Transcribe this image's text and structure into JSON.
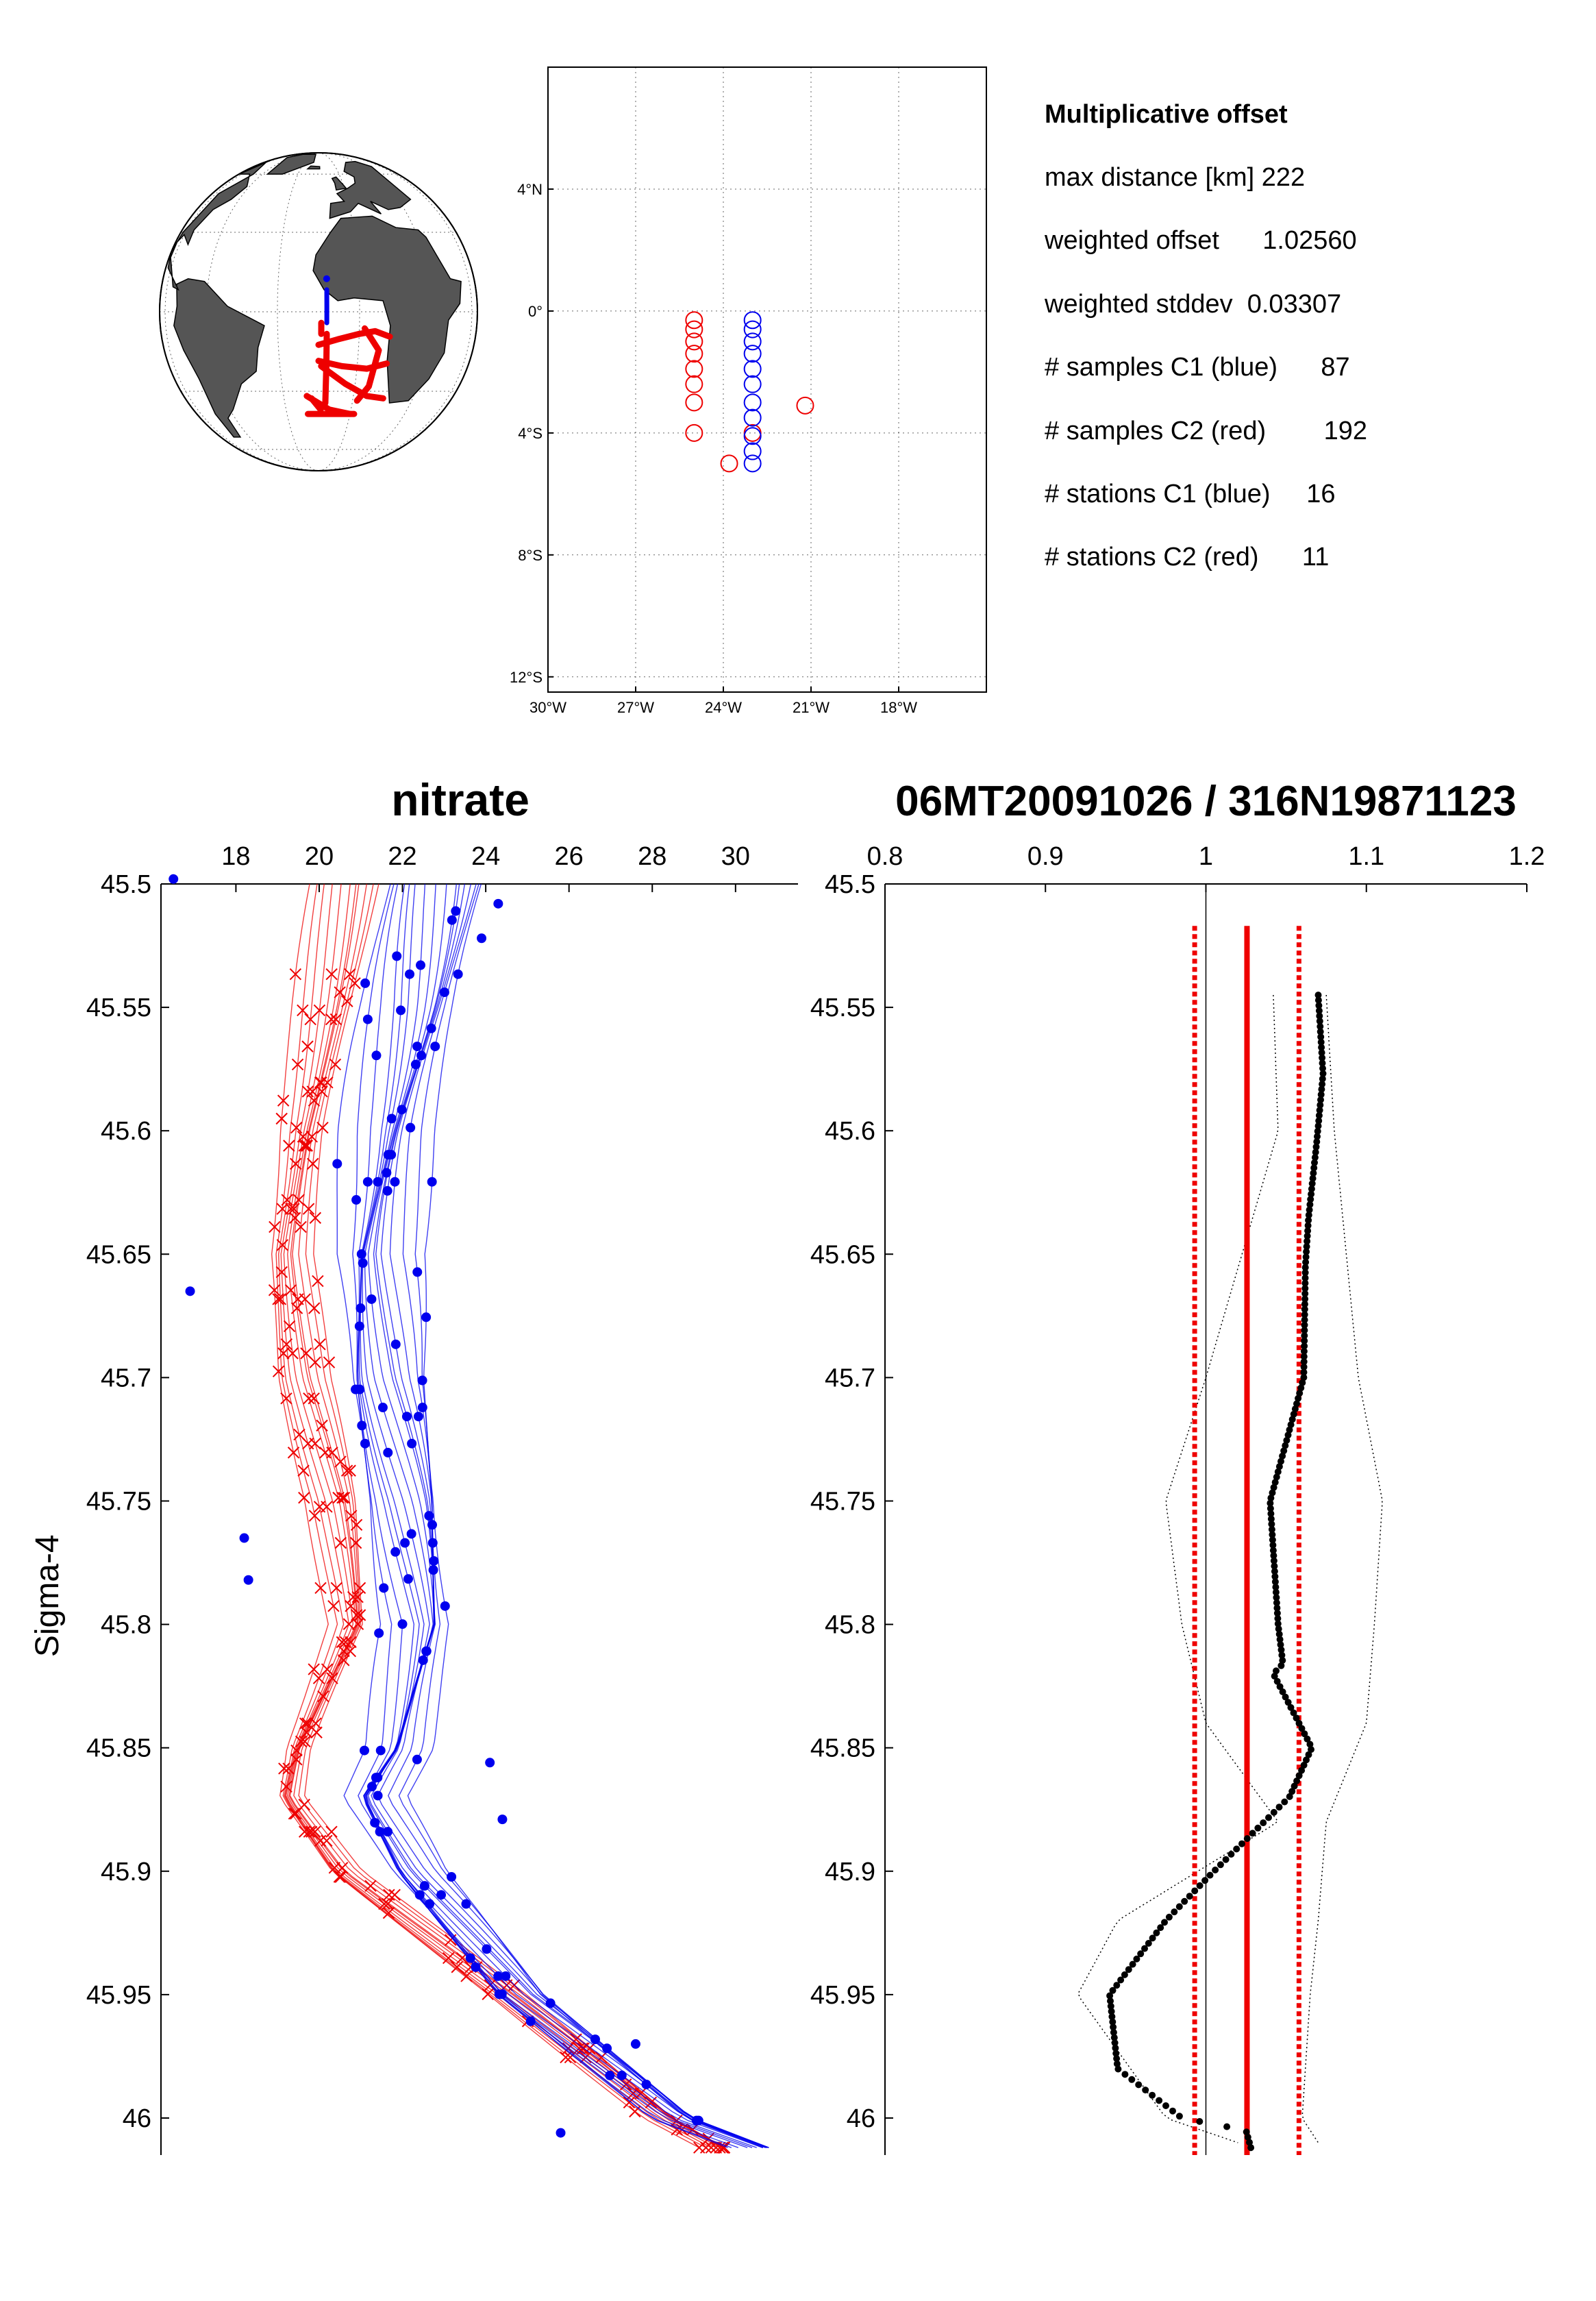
{
  "info": {
    "heading": "Multiplicative offset",
    "lines": [
      "max distance [km] 222",
      "weighted offset      1.02560",
      "weighted stddev  0.03307",
      "# samples C1 (blue)      87",
      "# samples C2 (red)        192",
      "# stations C1 (blue)     16",
      "# stations C2 (red)      11"
    ]
  },
  "colors": {
    "c1": "#0000ee",
    "c2": "#ee0000",
    "land": "#555555",
    "mean": "#000000"
  },
  "chart_data": [
    {
      "type": "map-globe",
      "projection": "orthographic",
      "center": {
        "lon": -15,
        "lat": 0
      },
      "land": "gray",
      "tracks_c2": [
        [
          [
            -15,
            -12
          ],
          [
            -8,
            -10
          ],
          [
            0,
            -8
          ],
          [
            6,
            -7
          ],
          [
            12,
            -9
          ]
        ],
        [
          [
            -15,
            -18
          ],
          [
            -6,
            -20
          ],
          [
            4,
            -21
          ],
          [
            12,
            -19
          ]
        ],
        [
          [
            -12,
            -8
          ],
          [
            -12,
            -20
          ],
          [
            -12,
            -35
          ]
        ],
        [
          [
            2,
            -6
          ],
          [
            8,
            -14
          ],
          [
            6,
            -28
          ],
          [
            2,
            -34
          ]
        ],
        [
          [
            -14,
            -20
          ],
          [
            -4,
            -27
          ],
          [
            6,
            -32
          ],
          [
            14,
            -33
          ]
        ],
        [
          [
            -20,
            -32
          ],
          [
            -10,
            -38
          ],
          [
            0,
            -40
          ]
        ],
        [
          [
            -20,
            -40
          ],
          [
            -8,
            -40
          ],
          [
            2,
            -40
          ]
        ],
        [
          [
            -18,
            -33
          ],
          [
            -14,
            -38
          ]
        ],
        [
          [
            -14,
            -4
          ],
          [
            -14,
            -8
          ]
        ]
      ],
      "tracks_c1": [
        [
          [
            -12,
            8
          ],
          [
            -12,
            2
          ],
          [
            -12,
            -4
          ]
        ]
      ]
    },
    {
      "type": "map",
      "xlim": [
        -30,
        -15
      ],
      "ylim": [
        -12.5,
        8
      ],
      "xticks": [
        -30,
        -27,
        -24,
        -21,
        -18
      ],
      "xticklabels": [
        "30°W",
        "27°W",
        "24°W",
        "21°W",
        "18°W"
      ],
      "yticks": [
        4,
        0,
        -4,
        -8,
        -12
      ],
      "yticklabels": [
        "4°N",
        "0°",
        "4°S",
        "8°S",
        "12°S"
      ],
      "grid": true,
      "stations_c1": [
        [
          -23,
          -0.3
        ],
        [
          -23,
          -0.6
        ],
        [
          -23,
          -1.0
        ],
        [
          -23,
          -1.4
        ],
        [
          -23,
          -1.9
        ],
        [
          -23,
          -2.4
        ],
        [
          -23,
          -3.0
        ],
        [
          -23,
          -3.5
        ],
        [
          -23,
          -4.1
        ],
        [
          -23,
          -4.6
        ],
        [
          -23,
          -5.0
        ]
      ],
      "stations_c2": [
        [
          -25,
          -0.3
        ],
        [
          -25,
          -0.6
        ],
        [
          -25,
          -1.0
        ],
        [
          -25,
          -1.4
        ],
        [
          -25,
          -1.9
        ],
        [
          -25,
          -2.4
        ],
        [
          -25,
          -3.0
        ],
        [
          -25,
          -4.0
        ],
        [
          -23.8,
          -5.0
        ],
        [
          -23,
          -4.0
        ],
        [
          -21.2,
          -3.1
        ]
      ]
    },
    {
      "type": "line",
      "title": "nitrate",
      "ylabel": "Sigma-4",
      "xlim": [
        16.2,
        31.5
      ],
      "ylim": [
        46.015,
        45.5
      ],
      "xticks": [
        18,
        20,
        22,
        24,
        26,
        28,
        30
      ],
      "xticklabels": [
        "18",
        "20",
        "22",
        "24",
        "26",
        "28",
        "30"
      ],
      "yticks": [
        45.5,
        45.55,
        45.6,
        45.65,
        45.7,
        45.75,
        45.8,
        45.85,
        45.9,
        45.95,
        46
      ],
      "yticklabels": [
        "45.5",
        "45.55",
        "45.6",
        "45.65",
        "45.7",
        "45.75",
        "45.8",
        "45.85",
        "45.9",
        "45.95",
        "46"
      ],
      "profile_template": {
        "sigma": [
          45.5,
          45.55,
          45.6,
          45.65,
          45.7,
          45.75,
          45.8,
          45.85,
          45.87,
          45.9,
          45.95,
          46.0,
          46.012
        ],
        "blue_nitrate": [
          22.8,
          22.3,
          21.7,
          21.3,
          21.5,
          22.1,
          22.5,
          21.9,
          21.2,
          22.2,
          24.8,
          28.6,
          30.5
        ],
        "red_nitrate": [
          20.6,
          20.1,
          19.6,
          19.3,
          19.6,
          20.3,
          20.7,
          19.5,
          19.3,
          20.6,
          24.5,
          28.2,
          29.5
        ]
      },
      "series": [
        {
          "name": "C1 (blue)",
          "station_offsets": [
            -1.2,
            -0.9,
            -0.7,
            -0.5,
            -0.3,
            -0.15,
            0,
            0.15,
            0.3,
            0.45,
            0.6,
            0.8,
            1.0,
            1.2,
            -0.4,
            0.35
          ]
        },
        {
          "name": "C2 (red)",
          "station_offsets": [
            -0.7,
            -0.5,
            -0.35,
            -0.2,
            -0.05,
            0.1,
            0.25,
            0.4,
            0.55,
            0.7,
            0.2
          ]
        }
      ],
      "outliers_c1": [
        [
          16.5,
          45.498
        ],
        [
          16.9,
          45.665
        ],
        [
          18.2,
          45.765
        ],
        [
          18.3,
          45.782
        ],
        [
          25.8,
          46.006
        ],
        [
          27.6,
          45.97
        ],
        [
          24.4,
          45.879
        ],
        [
          24.1,
          45.856
        ],
        [
          23.9,
          45.522
        ],
        [
          24.3,
          45.508
        ]
      ],
      "samples_c1_per_station": 6,
      "samples_c2_per_station": 17
    },
    {
      "type": "line",
      "title": "06MT20091026 / 316N19871123",
      "xlim": [
        0.8,
        1.2
      ],
      "ylim": [
        46.015,
        45.5
      ],
      "xticks": [
        0.8,
        0.9,
        1,
        1.1,
        1.2
      ],
      "xticklabels": [
        "0.8",
        "0.9",
        "1",
        "1.1",
        "1.2"
      ],
      "yticks": [
        45.5,
        45.55,
        45.6,
        45.65,
        45.7,
        45.75,
        45.8,
        45.85,
        45.9,
        45.95,
        46
      ],
      "yticklabels": [
        "45.5",
        "45.55",
        "45.6",
        "45.65",
        "45.7",
        "45.75",
        "45.8",
        "45.85",
        "45.9",
        "45.95",
        "46"
      ],
      "ratio_profile": {
        "sigma": [
          45.545,
          45.577,
          45.605,
          45.635,
          45.655,
          45.7,
          45.75,
          45.8,
          45.816,
          45.82,
          45.84,
          45.85,
          45.87,
          45.9,
          45.92,
          45.95,
          45.98,
          46.0,
          46.005,
          46.012
        ],
        "ratio": [
          1.07,
          1.073,
          1.069,
          1.064,
          1.062,
          1.061,
          1.04,
          1.045,
          1.048,
          1.042,
          1.058,
          1.066,
          1.052,
          1.005,
          0.975,
          0.94,
          0.945,
          0.985,
          1.025,
          1.028
        ]
      },
      "envelope_low": {
        "sigma": [
          45.545,
          45.6,
          45.7,
          45.75,
          45.8,
          45.84,
          45.88,
          45.92,
          45.95,
          46.0,
          46.01
        ],
        "ratio": [
          1.042,
          1.045,
          1.0,
          0.975,
          0.985,
          1.0,
          1.045,
          0.945,
          0.92,
          0.975,
          1.02
        ]
      },
      "envelope_high": {
        "sigma": [
          45.545,
          45.6,
          45.7,
          45.75,
          45.8,
          45.84,
          45.88,
          45.92,
          45.95,
          46.0,
          46.01
        ],
        "ratio": [
          1.075,
          1.08,
          1.095,
          1.11,
          1.105,
          1.1,
          1.075,
          1.07,
          1.065,
          1.06,
          1.07
        ]
      },
      "reference_line": 1.0,
      "weighted_offset": 1.0256,
      "offset_band": [
        0.993,
        1.058
      ],
      "offset_sigma_top": 45.517
    }
  ]
}
